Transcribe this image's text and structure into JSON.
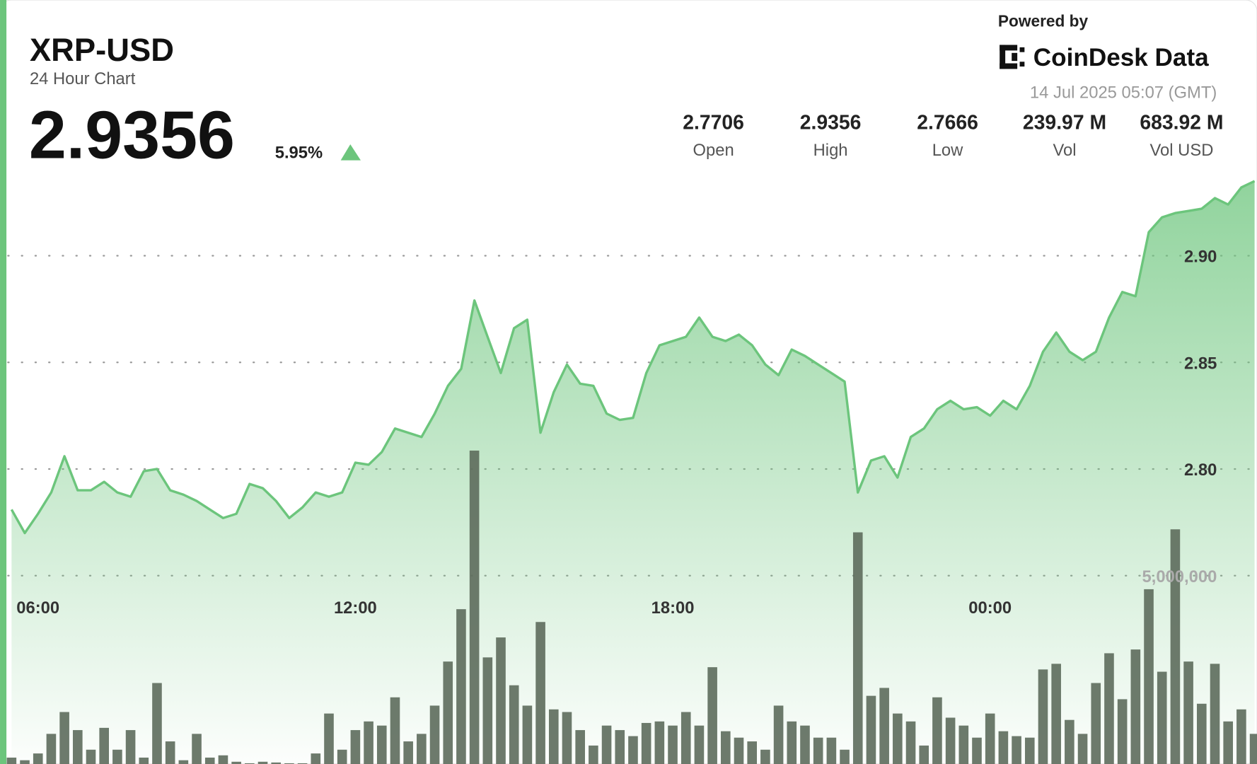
{
  "header": {
    "title": "XRP-USD",
    "subtitle": "24 Hour Chart",
    "price": "2.9356",
    "change": "5.95%",
    "powered": "Powered by",
    "brand": "CoinDesk Data",
    "timestamp": "14 Jul 2025 05:07 (GMT)",
    "stats": [
      {
        "value": "2.7706",
        "label": "Open"
      },
      {
        "value": "2.9356",
        "label": "High"
      },
      {
        "value": "2.7666",
        "label": "Low"
      },
      {
        "value": "239.97 M",
        "label": "Vol"
      },
      {
        "value": "683.92 M",
        "label": "Vol USD"
      }
    ]
  },
  "chart_data": {
    "type": "line",
    "x": [
      "05:30",
      "05:45",
      "06:00",
      "06:15",
      "06:30",
      "06:45",
      "07:00",
      "07:15",
      "07:30",
      "07:45",
      "08:00",
      "08:15",
      "08:30",
      "08:45",
      "09:00",
      "09:15",
      "09:30",
      "09:45",
      "10:00",
      "10:15",
      "10:30",
      "10:45",
      "11:00",
      "11:15",
      "11:30",
      "11:45",
      "12:00",
      "12:15",
      "12:30",
      "12:45",
      "13:00",
      "13:15",
      "13:30",
      "13:45",
      "14:00",
      "14:15",
      "14:30",
      "14:45",
      "15:00",
      "15:15",
      "15:30",
      "15:45",
      "16:00",
      "16:15",
      "16:30",
      "16:45",
      "17:00",
      "17:15",
      "17:30",
      "17:45",
      "18:00",
      "18:15",
      "18:30",
      "18:45",
      "19:00",
      "19:15",
      "19:30",
      "19:45",
      "20:00",
      "20:15",
      "20:30",
      "20:45",
      "21:00",
      "21:15",
      "21:30",
      "21:45",
      "22:00",
      "22:15",
      "22:30",
      "22:45",
      "23:00",
      "23:15",
      "23:30",
      "23:45",
      "00:00",
      "00:15",
      "00:30",
      "00:45",
      "01:00",
      "01:15",
      "01:30",
      "01:45",
      "02:00",
      "02:15",
      "02:30",
      "02:45",
      "03:00",
      "03:15",
      "03:30",
      "03:45",
      "04:00",
      "04:15",
      "04:30",
      "04:45",
      "05:00"
    ],
    "xlim": [
      "05:26",
      "05:00"
    ],
    "xticks": [
      "06:00",
      "12:00",
      "18:00",
      "00:00"
    ],
    "ylim": [
      2.6617,
      2.9372
    ],
    "yticks": [
      {
        "value": 2.8,
        "label": "2.80"
      },
      2.85,
      {
        "value": 2.9,
        "label": "2.90"
      }
    ],
    "y2lim": [
      0,
      15600000
    ],
    "y2ticks": [
      {
        "value": 5000000,
        "label": "5,000,000"
      }
    ],
    "grid": true,
    "series": [
      {
        "color": "#6cc57c",
        "values": [
          2.781,
          2.77,
          2.779,
          2.789,
          2.806,
          2.79,
          2.79,
          2.794,
          2.789,
          2.787,
          2.799,
          2.8,
          2.79,
          2.788,
          2.785,
          2.781,
          2.777,
          2.779,
          2.793,
          2.791,
          2.785,
          2.777,
          2.782,
          2.789,
          2.787,
          2.789,
          2.803,
          2.802,
          2.808,
          2.819,
          2.817,
          2.815,
          2.826,
          2.839,
          2.847,
          2.879,
          2.862,
          2.845,
          2.866,
          2.87,
          2.817,
          2.836,
          2.849,
          2.84,
          2.839,
          2.826,
          2.823,
          2.824,
          2.845,
          2.858,
          2.86,
          2.862,
          2.871,
          2.862,
          2.86,
          2.863,
          2.858,
          2.849,
          2.844,
          2.856,
          2.853,
          2.849,
          2.845,
          2.841,
          2.789,
          2.804,
          2.806,
          2.796,
          2.815,
          2.819,
          2.828,
          2.832,
          2.828,
          2.829,
          2.825,
          2.832,
          2.828,
          2.839,
          2.855,
          2.864,
          2.855,
          2.851,
          2.855,
          2.871,
          2.883,
          2.881,
          2.911,
          2.918,
          2.92,
          2.921,
          2.922,
          2.927,
          2.924,
          2.932,
          2.935
        ]
      },
      {
        "type": "bar",
        "axis": "y2",
        "color": "#5d6b5c",
        "values": [
          170000,
          100000,
          280000,
          800000,
          1380000,
          900000,
          380000,
          960000,
          380000,
          900000,
          170000,
          2150000,
          600000,
          100000,
          800000,
          170000,
          230000,
          60000,
          20000,
          60000,
          40000,
          20000,
          20000,
          280000,
          1340000,
          380000,
          900000,
          1130000,
          1020000,
          1770000,
          600000,
          800000,
          1550000,
          2720000,
          4110000,
          8320000,
          2830000,
          3360000,
          2090000,
          1550000,
          3770000,
          1450000,
          1380000,
          900000,
          490000,
          1020000,
          900000,
          740000,
          1090000,
          1130000,
          1020000,
          1380000,
          1020000,
          2570000,
          870000,
          700000,
          600000,
          380000,
          1550000,
          1130000,
          1020000,
          700000,
          700000,
          380000,
          6150000,
          1810000,
          2020000,
          1340000,
          1130000,
          490000,
          1770000,
          1230000,
          1020000,
          700000,
          1340000,
          870000,
          740000,
          700000,
          2510000,
          2660000,
          1170000,
          800000,
          2150000,
          2940000,
          1720000,
          3040000,
          4640000,
          2450000,
          6230000,
          2720000,
          1600000,
          2660000,
          1130000,
          1450000,
          800000
        ]
      }
    ]
  }
}
